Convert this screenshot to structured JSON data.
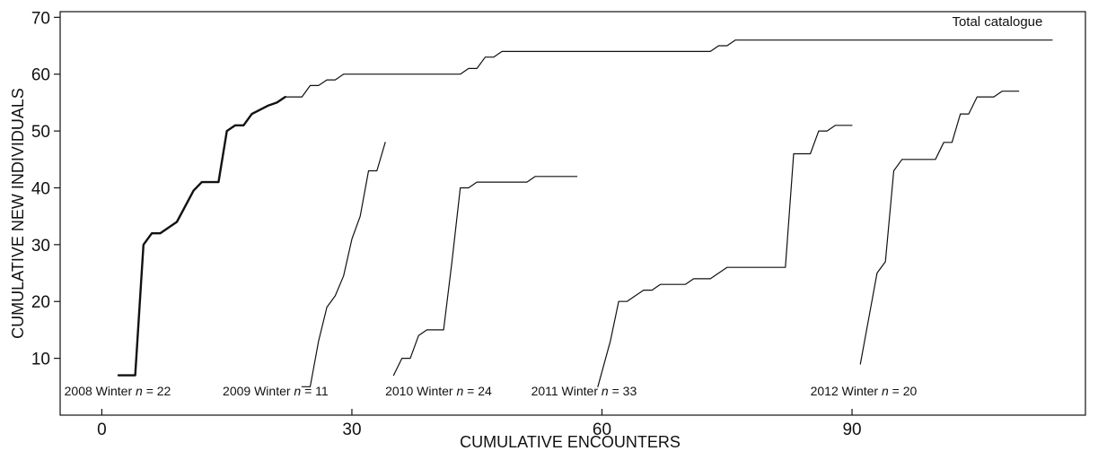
{
  "chart_data": {
    "type": "line",
    "xlabel": "CUMULATIVE ENCOUNTERS",
    "ylabel": "CUMULATIVE NEW INDIVIDUALS",
    "xlim": [
      -5,
      118
    ],
    "ylim": [
      0,
      71
    ],
    "xticks": [
      0,
      30,
      60,
      90
    ],
    "yticks": [
      10,
      20,
      30,
      40,
      50,
      60,
      70
    ],
    "grid": false,
    "series": [
      {
        "name": "Total catalogue",
        "emphasis": "thin",
        "points": [
          [
            22,
            56
          ],
          [
            24,
            56
          ],
          [
            25,
            58
          ],
          [
            26,
            58
          ],
          [
            27,
            59
          ],
          [
            28,
            59
          ],
          [
            29,
            60
          ],
          [
            33,
            60
          ],
          [
            38,
            60
          ],
          [
            43,
            60
          ],
          [
            44,
            61
          ],
          [
            45,
            61
          ],
          [
            46,
            63
          ],
          [
            47,
            63
          ],
          [
            48,
            64
          ],
          [
            60,
            64
          ],
          [
            73,
            64
          ],
          [
            74,
            65
          ],
          [
            75,
            65
          ],
          [
            76,
            66
          ],
          [
            95,
            66
          ],
          [
            114,
            66
          ]
        ]
      },
      {
        "name": "",
        "emphasis": "bold",
        "points": [
          [
            2,
            7
          ],
          [
            4,
            7
          ],
          [
            5,
            30
          ],
          [
            6,
            32
          ],
          [
            7,
            32
          ],
          [
            9,
            34
          ],
          [
            11,
            39.5
          ],
          [
            12,
            41
          ],
          [
            14,
            41
          ],
          [
            15,
            50
          ],
          [
            16,
            51
          ],
          [
            17,
            51
          ],
          [
            18,
            53
          ],
          [
            20,
            54.5
          ],
          [
            21,
            55
          ],
          [
            22,
            56
          ]
        ]
      },
      {
        "name": "",
        "emphasis": "thin",
        "points": [
          [
            24,
            5
          ],
          [
            25,
            5
          ],
          [
            26,
            13
          ],
          [
            27,
            19
          ],
          [
            28,
            21
          ],
          [
            29,
            24.5
          ],
          [
            30,
            31
          ],
          [
            31,
            35
          ],
          [
            32,
            43
          ],
          [
            33,
            43
          ],
          [
            34,
            48
          ]
        ]
      },
      {
        "name": "",
        "emphasis": "thin",
        "points": [
          [
            35,
            7
          ],
          [
            36,
            10
          ],
          [
            37,
            10
          ],
          [
            38,
            14
          ],
          [
            39,
            15
          ],
          [
            41,
            15
          ],
          [
            42,
            27
          ],
          [
            43,
            40
          ],
          [
            44,
            40
          ],
          [
            45,
            41
          ],
          [
            51,
            41
          ],
          [
            52,
            42
          ],
          [
            57,
            42
          ]
        ]
      },
      {
        "name": "",
        "emphasis": "thin",
        "points": [
          [
            59.5,
            5
          ],
          [
            61,
            13
          ],
          [
            62,
            20
          ],
          [
            63,
            20
          ],
          [
            64,
            21
          ],
          [
            65,
            22
          ],
          [
            66,
            22
          ],
          [
            67,
            23
          ],
          [
            70,
            23
          ],
          [
            71,
            24
          ],
          [
            73,
            24
          ],
          [
            75,
            26
          ],
          [
            82,
            26
          ],
          [
            83,
            46
          ],
          [
            85,
            46
          ],
          [
            86,
            50
          ],
          [
            87,
            50
          ],
          [
            88,
            51
          ],
          [
            90,
            51
          ]
        ]
      },
      {
        "name": "",
        "emphasis": "thin",
        "points": [
          [
            91,
            9
          ],
          [
            92,
            17
          ],
          [
            93,
            25
          ],
          [
            94,
            27
          ],
          [
            95,
            43
          ],
          [
            96,
            45
          ],
          [
            100,
            45
          ],
          [
            101,
            48
          ],
          [
            102,
            48
          ],
          [
            103,
            53
          ],
          [
            104,
            53
          ],
          [
            105,
            56
          ],
          [
            107,
            56
          ],
          [
            108,
            57
          ],
          [
            110,
            57
          ]
        ]
      }
    ],
    "annotations": [
      {
        "text": "Total catalogue",
        "at": [
          102,
          68.5
        ],
        "style": "large"
      },
      {
        "prefix": "2008 Winter ",
        "n_label": "n",
        "suffix": " = 22",
        "at": [
          -4.5,
          3.5
        ]
      },
      {
        "prefix": "2009 Winter ",
        "n_label": "n",
        "suffix": " = 11",
        "at": [
          14.5,
          3.5
        ]
      },
      {
        "prefix": "2010 Winter ",
        "n_label": "n",
        "suffix": " = 24",
        "at": [
          34,
          3.5
        ]
      },
      {
        "prefix": "2011 Winter ",
        "n_label": "n",
        "suffix": " = 33",
        "at": [
          51.5,
          3.5
        ]
      },
      {
        "prefix": "2012 Winter ",
        "n_label": "n",
        "suffix": " = 20",
        "at": [
          85,
          3.5
        ]
      }
    ]
  }
}
